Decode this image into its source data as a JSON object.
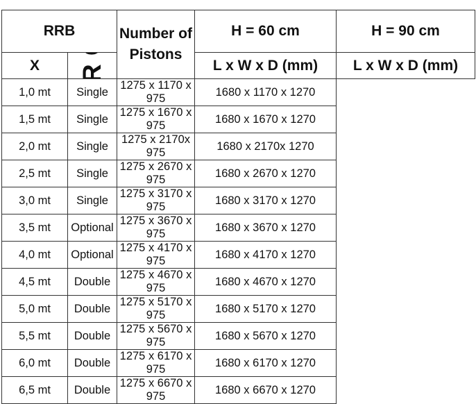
{
  "header": {
    "rrb": "RRB",
    "x": "X",
    "pistons": "Number of Pistons",
    "h60": "H = 60 cm",
    "h90": "H = 90 cm",
    "dims60": "L x W x D (mm)",
    "dims90": "L x W x D (mm)"
  },
  "side_label": "BLOCKER CABINET",
  "rows": [
    {
      "x": "1,0 mt",
      "pistons": "Single",
      "h60": "1275 x 1170 x 975",
      "h90": "1680 x 1170 x 1270"
    },
    {
      "x": "1,5 mt",
      "pistons": "Single",
      "h60": "1275 x 1670 x 975",
      "h90": "1680 x 1670 x 1270"
    },
    {
      "x": "2,0 mt",
      "pistons": "Single",
      "h60": "1275 x 2170x 975",
      "h90": "1680 x 2170x 1270"
    },
    {
      "x": "2,5 mt",
      "pistons": "Single",
      "h60": "1275 x 2670 x 975",
      "h90": "1680 x 2670 x 1270"
    },
    {
      "x": "3,0 mt",
      "pistons": "Single",
      "h60": "1275 x 3170 x 975",
      "h90": "1680 x 3170 x 1270"
    },
    {
      "x": "3,5 mt",
      "pistons": "Optional",
      "h60": "1275 x 3670 x 975",
      "h90": "1680 x 3670 x 1270"
    },
    {
      "x": "4,0 mt",
      "pistons": "Optional",
      "h60": "1275 x 4170 x 975",
      "h90": "1680 x 4170 x 1270"
    },
    {
      "x": "4,5 mt",
      "pistons": "Double",
      "h60": "1275 x 4670 x 975",
      "h90": "1680 x 4670 x 1270"
    },
    {
      "x": "5,0 mt",
      "pistons": "Double",
      "h60": "1275 x 5170 x 975",
      "h90": "1680 x 5170 x 1270"
    },
    {
      "x": "5,5 mt",
      "pistons": "Double",
      "h60": "1275 x 5670 x 975",
      "h90": "1680 x 5670 x 1270"
    },
    {
      "x": "6,0 mt",
      "pistons": "Double",
      "h60": "1275 x 6170 x 975",
      "h90": "1680 x 6170 x 1270"
    },
    {
      "x": "6,5 mt",
      "pistons": "Double",
      "h60": "1275 x 6670 x 975",
      "h90": "1680 x 6670 x 1270"
    }
  ]
}
